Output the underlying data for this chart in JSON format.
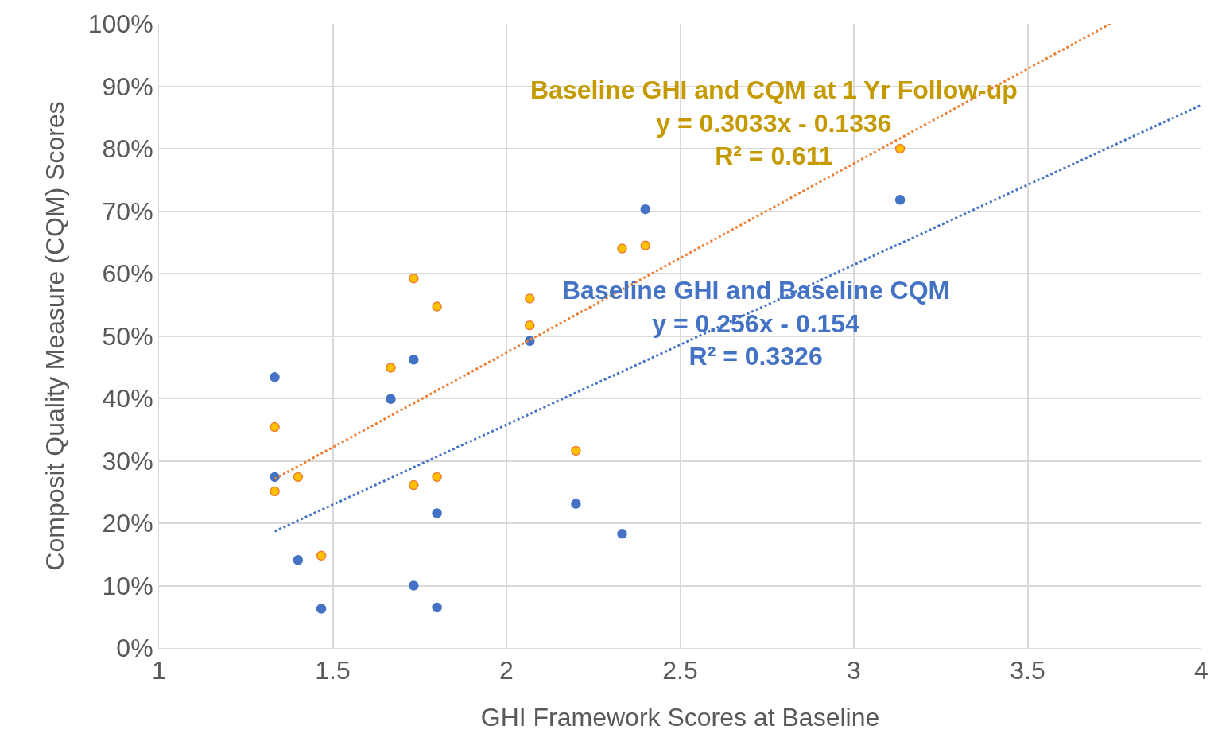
{
  "chart_data": {
    "type": "scatter",
    "xlabel": "GHI Framework Scores at Baseline",
    "ylabel": "Composit Quality Measure (CQM) Scores",
    "xlim": [
      1,
      4
    ],
    "xticks": [
      1,
      1.5,
      2,
      2.5,
      3,
      3.5,
      4
    ],
    "ylim": [
      0,
      1
    ],
    "yticks": [
      {
        "value": 0,
        "label": "0%"
      },
      {
        "value": 0.1,
        "label": "10%"
      },
      {
        "value": 0.2,
        "label": "20%"
      },
      {
        "value": 0.3,
        "label": "30%"
      },
      {
        "value": 0.4,
        "label": "40%"
      },
      {
        "value": 0.5,
        "label": "50%"
      },
      {
        "value": 0.6,
        "label": "60%"
      },
      {
        "value": 0.7,
        "label": "70%"
      },
      {
        "value": 0.8,
        "label": "80%"
      },
      {
        "value": 0.9,
        "label": "90%"
      },
      {
        "value": 1,
        "label": "100%"
      }
    ],
    "grid": true,
    "series": [
      {
        "marker": "circle",
        "color": "#4472c4",
        "x": [
          1.333,
          1.333,
          1.4,
          1.467,
          1.667,
          1.733,
          1.733,
          1.8,
          1.8,
          2.067,
          2.2,
          2.333,
          2.4,
          3.133
        ],
        "values": [
          0.434,
          0.274,
          0.141,
          0.063,
          0.399,
          0.462,
          0.1,
          0.216,
          0.065,
          0.492,
          0.231,
          0.183,
          0.703,
          0.718
        ]
      },
      {
        "marker": "circle",
        "color": "#ffc000",
        "x": [
          1.333,
          1.333,
          1.4,
          1.467,
          1.667,
          1.733,
          1.733,
          1.8,
          1.8,
          2.067,
          2.067,
          2.2,
          2.333,
          2.4,
          3.133
        ],
        "values": [
          0.354,
          0.251,
          0.274,
          0.148,
          0.449,
          0.592,
          0.261,
          0.547,
          0.274,
          0.56,
          0.517,
          0.316,
          0.64,
          0.645,
          0.8
        ]
      },
      {
        "type": "line",
        "line_style": "dotted",
        "marker": "none",
        "color": "#4472c4",
        "x": [
          1.333,
          4
        ],
        "values": [
          0.187,
          0.87
        ]
      },
      {
        "type": "line",
        "line_style": "dotted",
        "marker": "none",
        "color": "#ed7d31",
        "x": [
          1.333,
          3.738
        ],
        "values": [
          0.271,
          1.0
        ]
      }
    ],
    "annotations": [
      "Baseline GHI and CQM at 1 Yr Follow-up\ny = 0.3033x - 0.1336\nR² = 0.611",
      "Baseline GHI and Baseline CQM\ny = 0.256x - 0.154\nR² = 0.3326"
    ]
  }
}
